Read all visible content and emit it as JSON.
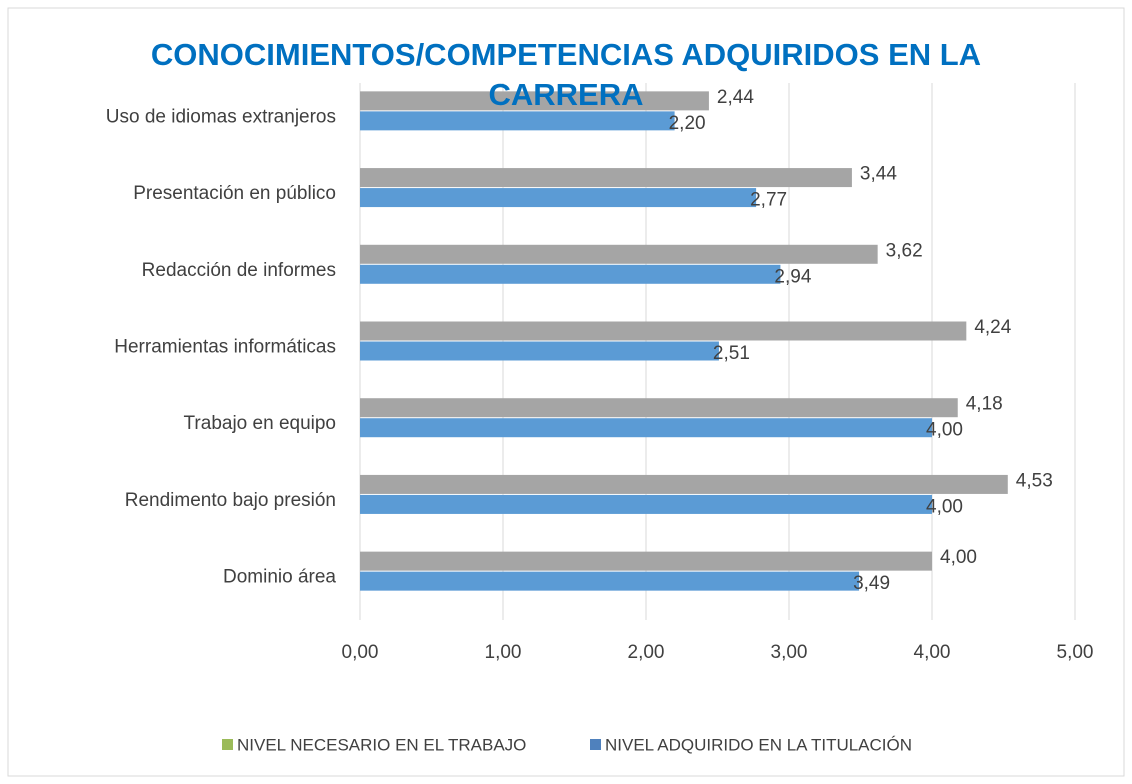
{
  "chart_data": {
    "type": "hbar",
    "title": "CONOCIMIENTOS/COMPETENCIAS ADQUIRIDOS EN LA CARRERA",
    "categories": [
      "Uso de idiomas extranjeros",
      "Presentación en público",
      "Redacción de informes",
      "Herramientas informáticas",
      "Trabajo en equipo",
      "Rendimento bajo presión",
      "Dominio área"
    ],
    "series": [
      {
        "name": "NIVEL NECESARIO EN EL TRABAJO",
        "color": "#a5a5a5",
        "legend_color": "#9bbb59",
        "values": [
          2.44,
          3.44,
          3.62,
          4.24,
          4.18,
          4.53,
          4.0
        ],
        "value_labels": [
          "2,44",
          "3,44",
          "3,62",
          "4,24",
          "4,18",
          "4,53",
          "4,00"
        ]
      },
      {
        "name": "NIVEL ADQUIRIDO EN LA TITULACIÓN",
        "color": "#5b9bd5",
        "legend_color": "#4f81bd",
        "values": [
          2.2,
          2.77,
          2.94,
          2.51,
          4.0,
          4.0,
          3.49
        ],
        "value_labels": [
          "2,20",
          "2,77",
          "2,94",
          "2,51",
          "4,00",
          "4,00",
          "3,49"
        ]
      }
    ],
    "xlim": [
      0,
      5
    ],
    "xticks": [
      {
        "value": 0,
        "label": "0,00"
      },
      {
        "value": 1,
        "label": "1,00"
      },
      {
        "value": 2,
        "label": "2,00"
      },
      {
        "value": 3,
        "label": "3,00"
      },
      {
        "value": 4,
        "label": "4,00"
      },
      {
        "value": 5,
        "label": "5,00"
      }
    ],
    "grid": true,
    "legend": "bottom"
  }
}
